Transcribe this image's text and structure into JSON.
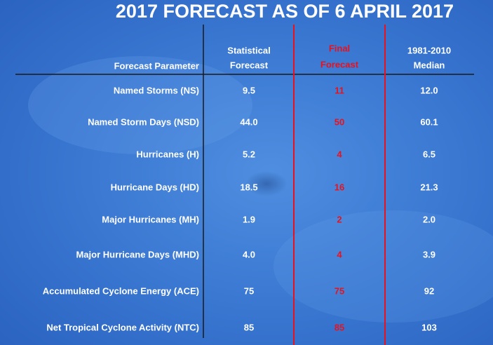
{
  "title": "2017 FORECAST AS OF 6 APRIL 2017",
  "table": {
    "header": [
      [
        "Forecast Parameter"
      ],
      [
        "Statistical",
        "Forecast"
      ],
      [
        "Final",
        "Forecast"
      ],
      [
        "1981-2010",
        "Median"
      ]
    ],
    "rows": [
      [
        "Named Storms (NS)",
        "9.5",
        "11",
        "12.0"
      ],
      [
        "Named Storm Days (NSD)",
        "44.0",
        "50",
        "60.1"
      ],
      [
        "Hurricanes (H)",
        "5.2",
        "4",
        "6.5"
      ],
      [
        "Hurricane Days (HD)",
        "18.5",
        "16",
        "21.3"
      ],
      [
        "Major Hurricanes (MH)",
        "1.9",
        "2",
        "2.0"
      ],
      [
        "Major Hurricane Days (MHD)",
        "4.0",
        "4",
        "3.9"
      ],
      [
        "Accumulated Cyclone Energy (ACE)",
        "75",
        "75",
        "92"
      ],
      [
        "Net Tropical Cyclone Activity (NTC)",
        "85",
        "85",
        "103"
      ]
    ]
  }
}
